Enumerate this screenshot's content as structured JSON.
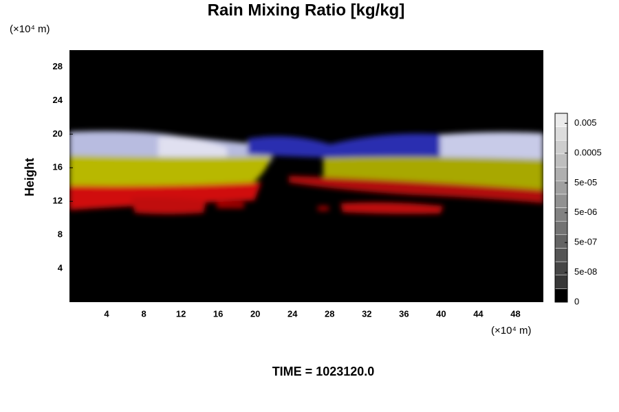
{
  "chart_data": {
    "type": "heatmap",
    "title": "Rain Mixing Ratio [kg/kg]",
    "ylabel": "Height",
    "x_unit": "(×10⁴ m)",
    "y_unit": "(×10⁴ m)",
    "footer": "TIME = 1023120.0",
    "xlim": [
      0,
      51
    ],
    "xticks": [
      4,
      8,
      12,
      16,
      20,
      24,
      28,
      32,
      36,
      40,
      44,
      48
    ],
    "ylim": [
      0,
      30
    ],
    "yticks": [
      4,
      8,
      12,
      16,
      20,
      24,
      28
    ],
    "colorbar_ticks": [
      0,
      {
        "value": 5e-08,
        "label": "5e-08"
      },
      {
        "value": 5e-07,
        "label": "5e-07"
      },
      {
        "value": 5e-06,
        "label": "5e-06"
      },
      {
        "value": 5e-05,
        "label": "5e-05"
      },
      0.0005,
      0.005
    ]
  }
}
